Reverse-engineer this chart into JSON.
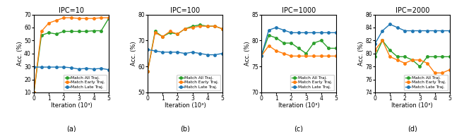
{
  "subplots": [
    {
      "title": "IPC=10",
      "ylabel": "Acc. (%)",
      "xlabel": "Iteration (10³)",
      "xlim": [
        0,
        5
      ],
      "ylim": [
        10,
        70
      ],
      "yticks": [
        10,
        20,
        30,
        40,
        50,
        60,
        70
      ],
      "label": "(a)",
      "series": {
        "all": [
          10.0,
          54.0,
          56.0,
          55.0,
          57.0,
          57.0,
          57.0,
          57.0,
          57.5,
          57.5,
          67.0
        ],
        "early": [
          10.0,
          57.0,
          63.5,
          65.5,
          67.5,
          67.5,
          67.0,
          67.0,
          67.0,
          67.5,
          67.5
        ],
        "late": [
          29.5,
          29.5,
          29.5,
          29.5,
          29.5,
          29.0,
          28.0,
          28.5,
          28.0,
          28.5,
          27.5
        ]
      },
      "x": [
        0.0,
        0.5,
        1.0,
        1.5,
        2.0,
        2.5,
        3.0,
        3.5,
        4.0,
        4.5,
        5.0
      ]
    },
    {
      "title": "IPC=100",
      "ylabel": "Acc. (%)",
      "xlabel": "Iteration (10³)",
      "xlim": [
        0,
        5
      ],
      "ylim": [
        50,
        80
      ],
      "yticks": [
        50,
        60,
        70,
        80
      ],
      "label": "(b)",
      "series": {
        "all": [
          58.0,
          73.5,
          71.5,
          73.0,
          72.5,
          74.5,
          75.5,
          76.0,
          75.5,
          75.5,
          74.5
        ],
        "early": [
          58.0,
          73.0,
          71.5,
          73.5,
          72.5,
          74.5,
          75.0,
          75.5,
          75.5,
          75.5,
          74.5
        ],
        "late": [
          66.5,
          66.0,
          65.5,
          65.5,
          65.5,
          65.0,
          65.5,
          65.0,
          64.5,
          64.5,
          65.0
        ]
      },
      "x": [
        0.0,
        0.5,
        1.0,
        1.5,
        2.0,
        2.5,
        3.0,
        3.5,
        4.0,
        4.5,
        5.0
      ]
    },
    {
      "title": "IPC=1000",
      "ylabel": "Acc. (%)",
      "xlabel": "Iteration (10³)",
      "xlim": [
        0,
        5
      ],
      "ylim": [
        70,
        85
      ],
      "yticks": [
        70,
        75,
        80,
        85
      ],
      "label": "(c)",
      "series": {
        "all": [
          77.0,
          81.0,
          80.5,
          79.5,
          79.5,
          78.5,
          77.5,
          79.5,
          80.0,
          78.5,
          78.5
        ],
        "early": [
          77.0,
          79.0,
          78.0,
          77.5,
          77.0,
          77.0,
          77.0,
          77.0,
          77.0,
          77.0,
          77.0
        ],
        "late": [
          77.0,
          82.0,
          82.5,
          82.0,
          81.5,
          81.5,
          81.5,
          81.5,
          81.5,
          81.5,
          81.5
        ]
      },
      "x": [
        0.0,
        0.5,
        1.0,
        1.5,
        2.0,
        2.5,
        3.0,
        3.5,
        4.0,
        4.5,
        5.0
      ]
    },
    {
      "title": "IPC=2000",
      "ylabel": "Acc. (%)",
      "xlabel": "Iteration (10³)",
      "xlim": [
        0,
        5
      ],
      "ylim": [
        74,
        86
      ],
      "yticks": [
        74,
        76,
        78,
        80,
        82,
        84,
        86
      ],
      "label": "(d)",
      "series": {
        "all": [
          79.5,
          82.0,
          80.5,
          79.5,
          79.5,
          79.0,
          78.0,
          79.5,
          79.5,
          79.5,
          79.5
        ],
        "early": [
          80.5,
          82.0,
          79.5,
          79.0,
          78.5,
          79.0,
          79.0,
          78.5,
          77.0,
          77.0,
          77.5
        ],
        "late": [
          81.5,
          83.5,
          84.5,
          84.0,
          83.5,
          83.5,
          83.5,
          83.5,
          83.5,
          83.5,
          83.5
        ]
      },
      "x": [
        0.0,
        0.5,
        1.0,
        1.5,
        2.0,
        2.5,
        3.0,
        3.5,
        4.0,
        4.5,
        5.0
      ]
    }
  ],
  "colors": {
    "all": "#2ca02c",
    "early": "#ff7f0e",
    "late": "#1f77b4"
  },
  "legend_labels": {
    "all": "Match All Traj.",
    "early": "Match Early Traj.",
    "late": "Match Late Traj."
  },
  "marker": "o",
  "markersize": 2.5,
  "linewidth": 1.0
}
